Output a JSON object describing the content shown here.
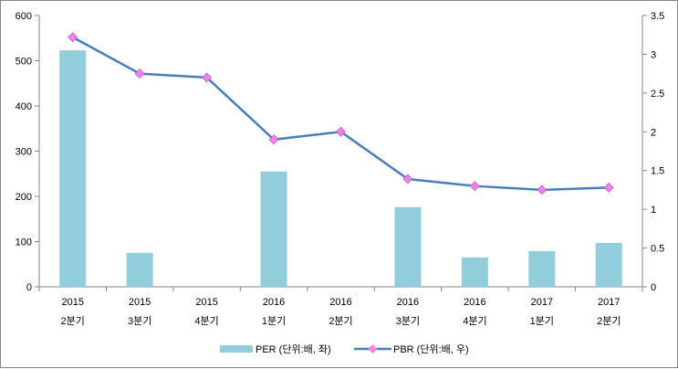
{
  "chart_data": {
    "type": "bar+line",
    "categories": [
      [
        "2015",
        "2분기"
      ],
      [
        "2015",
        "3분기"
      ],
      [
        "2015",
        "4분기"
      ],
      [
        "2016",
        "1분기"
      ],
      [
        "2016",
        "2분기"
      ],
      [
        "2016",
        "3분기"
      ],
      [
        "2016",
        "4분기"
      ],
      [
        "2017",
        "1분기"
      ],
      [
        "2017",
        "2분기"
      ]
    ],
    "series": [
      {
        "name": "PER (단위:배, 좌)",
        "type": "bar",
        "axis": "left",
        "color": "#92cddc",
        "values": [
          523,
          75,
          null,
          255,
          null,
          176,
          65,
          79,
          97
        ]
      },
      {
        "name": "PBR (단위:배, 우)",
        "type": "line",
        "axis": "right",
        "color": "#4a7ebb",
        "marker_color": "#ee82ee",
        "values": [
          3.22,
          2.75,
          2.7,
          1.9,
          2.0,
          1.39,
          1.3,
          1.25,
          1.28
        ]
      }
    ],
    "left_axis": {
      "range": [
        0,
        600
      ],
      "ticks": [
        "0",
        "100",
        "200",
        "300",
        "400",
        "500",
        "600"
      ]
    },
    "right_axis": {
      "range": [
        0,
        3.5
      ],
      "ticks": [
        "0",
        "0.5",
        "1",
        "1.5",
        "2",
        "2.5",
        "3",
        "3.5"
      ]
    },
    "legend": "bottom",
    "grid": false
  }
}
